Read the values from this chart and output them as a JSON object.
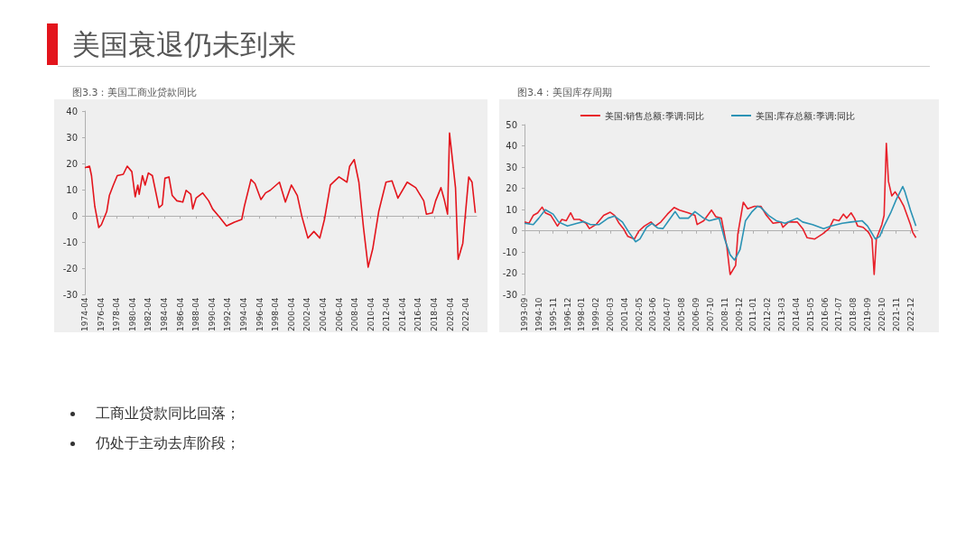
{
  "chart_data": [
    {
      "type": "other",
      "title": "美国衰退仍未到来",
      "annotations": [
        "工商业贷款同比回落；",
        "仍处于主动去库阶段；"
      ]
    },
    {
      "type": "line",
      "title": "图3.3：美国工商业贷款同比",
      "marker": "none",
      "color": "#e3141c",
      "x": [
        "1974-04",
        "1974-11",
        "1975-02",
        "1975-07",
        "1976-01",
        "1976-05",
        "1977-01",
        "1977-05",
        "1977-11",
        "1978-05",
        "1979-02",
        "1979-08",
        "1980-03",
        "1980-08",
        "1980-12",
        "1981-02",
        "1981-07",
        "1981-11",
        "1982-04",
        "1982-10",
        "1983-08",
        "1984-01",
        "1984-05",
        "1984-11",
        "1985-04",
        "1985-11",
        "1986-08",
        "1987-01",
        "1987-08",
        "1987-11",
        "1988-04",
        "1989-02",
        "1989-11",
        "1990-05",
        "1991-03",
        "1992-02",
        "1993-02",
        "1994-01",
        "1994-05",
        "1995-03",
        "1995-09",
        "1996-06",
        "1997-01",
        "1997-08",
        "1998-10",
        "1999-07",
        "2000-04",
        "2001-01",
        "2001-08",
        "2002-05",
        "2003-02",
        "2003-11",
        "2004-06",
        "2005-03",
        "2006-04",
        "2007-04",
        "2007-08",
        "2008-03",
        "2008-10",
        "2009-05",
        "2009-12",
        "2010-07",
        "2011-04",
        "2012-03",
        "2012-12",
        "2013-09",
        "2014-11",
        "2015-12",
        "2016-12",
        "2017-04",
        "2018-01",
        "2018-06",
        "2019-02",
        "2019-07",
        "2019-12",
        "2020-03",
        "2020-12",
        "2021-04",
        "2021-11",
        "2022-08",
        "2023-01",
        "2023-06"
      ],
      "values": [
        18.4,
        19,
        15.4,
        3.7,
        -4.4,
        -3.3,
        1.7,
        7.8,
        11.8,
        15.4,
        15.9,
        19,
        16.9,
        7.3,
        11.8,
        8.3,
        15.4,
        11.8,
        16.4,
        15.4,
        3.2,
        4.3,
        14.4,
        14.9,
        7.8,
        5.8,
        5.3,
        9.8,
        8.3,
        2.7,
        6.8,
        8.8,
        5.8,
        2.7,
        -0.3,
        -3.8,
        -2.3,
        -1.3,
        3.7,
        13.9,
        12.4,
        6.3,
        8.8,
        9.8,
        12.9,
        5.3,
        11.8,
        7.8,
        -0.3,
        -8.4,
        -5.9,
        -8.4,
        -1.3,
        11.8,
        14.9,
        12.9,
        18.9,
        21.5,
        12.9,
        -4.4,
        -19.5,
        -12.5,
        1.7,
        12.9,
        13.4,
        6.8,
        12.9,
        10.8,
        5.8,
        0.7,
        1.2,
        5.8,
        10.8,
        6.3,
        0.7,
        31.6,
        10.8,
        -16.5,
        -10.4,
        14.9,
        12.9,
        1.2
      ],
      "xlim": [
        "1974-04",
        "2023-08"
      ],
      "xticks": [
        "1974-04",
        "1976-04",
        "1978-04",
        "1980-04",
        "1982-04",
        "1984-04",
        "1986-04",
        "1988-04",
        "1990-04",
        "1992-04",
        "1994-04",
        "1996-04",
        "1998-04",
        "2000-04",
        "2002-04",
        "2004-04",
        "2006-04",
        "2008-04",
        "2010-04",
        "2012-04",
        "2014-04",
        "2016-04",
        "2018-04",
        "2020-04",
        "2022-04"
      ],
      "ylim": [
        -30,
        40
      ],
      "yticks": [
        -30,
        -20,
        -10,
        0,
        10,
        20,
        30,
        40
      ]
    },
    {
      "type": "line",
      "title": "图3.4：美国库存周期",
      "marker": "none",
      "legend": "top",
      "series": [
        {
          "name": "美国:销售总额:季调:同比",
          "color": "#e8202a",
          "x": [
            "1993-09",
            "1994-01",
            "1994-05",
            "1994-09",
            "1995-01",
            "1995-04",
            "1995-09",
            "1996-03",
            "1996-07",
            "1996-11",
            "1997-03",
            "1997-06",
            "1997-11",
            "1998-05",
            "1998-08",
            "1999-02",
            "1999-09",
            "2000-03",
            "2000-07",
            "2000-11",
            "2001-03",
            "2001-07",
            "2002-01",
            "2002-05",
            "2002-10",
            "2003-04",
            "2003-08",
            "2004-01",
            "2004-07",
            "2005-01",
            "2005-06",
            "2006-02",
            "2006-08",
            "2006-10",
            "2007-04",
            "2007-11",
            "2008-03",
            "2008-08",
            "2009-01",
            "2009-04",
            "2009-09",
            "2009-11",
            "2010-04",
            "2010-08",
            "2011-02",
            "2011-08",
            "2012-01",
            "2012-07",
            "2013-02",
            "2013-04",
            "2013-09",
            "2014-05",
            "2014-10",
            "2015-02",
            "2015-09",
            "2016-04",
            "2016-10",
            "2017-02",
            "2017-07",
            "2017-11",
            "2018-02",
            "2018-06",
            "2018-09",
            "2018-12",
            "2019-05",
            "2019-10",
            "2020-01",
            "2020-03",
            "2020-05",
            "2020-10",
            "2020-12",
            "2021-02",
            "2021-04",
            "2021-07",
            "2021-10",
            "2022-02",
            "2022-06",
            "2022-12",
            "2023-02",
            "2023-05"
          ],
          "values": [
            4.2,
            3.6,
            7.3,
            8.5,
            11.2,
            8.5,
            7.3,
            2.3,
            5.4,
            4.8,
            8.5,
            5.4,
            5.4,
            3.6,
            1.1,
            3.0,
            7.3,
            8.8,
            7.3,
            3.6,
            1.1,
            -2.6,
            -3.8,
            -0.1,
            2.3,
            4.2,
            2.3,
            4.2,
            7.9,
            11,
            9.8,
            8.5,
            7.3,
            3.0,
            4.8,
            9.8,
            6.7,
            6.0,
            -7.5,
            -20.5,
            -16.2,
            -1.4,
            13.5,
            10.4,
            11.6,
            11.6,
            7.3,
            3.6,
            4.2,
            1.7,
            4.2,
            4.2,
            1.1,
            -3.2,
            -3.8,
            -1.4,
            1.1,
            5.4,
            4.8,
            7.9,
            6.0,
            8.5,
            6.0,
            2.3,
            1.7,
            -0.7,
            -3.8,
            -20.5,
            -3.8,
            3.0,
            7.3,
            41.2,
            23.3,
            16.5,
            18.4,
            15.3,
            11.6,
            3.0,
            -0.7,
            -3.2
          ]
        },
        {
          "name": "美国:库存总额:季调:同比",
          "color": "#2b93b5",
          "x": [
            "1993-09",
            "1994-05",
            "1994-10",
            "1995-04",
            "1995-11",
            "1996-04",
            "1996-12",
            "1997-09",
            "1998-03",
            "1998-09",
            "1999-05",
            "2000-01",
            "2000-07",
            "2001-02",
            "2001-08",
            "2002-02",
            "2002-06",
            "2002-12",
            "2003-05",
            "2003-10",
            "2004-03",
            "2004-08",
            "2005-02",
            "2005-06",
            "2006-02",
            "2006-08",
            "2007-04",
            "2007-09",
            "2008-06",
            "2008-11",
            "2009-04",
            "2009-08",
            "2010-01",
            "2010-06",
            "2010-12",
            "2011-05",
            "2011-08",
            "2012-03",
            "2012-10",
            "2013-06",
            "2014-05",
            "2014-10",
            "2015-07",
            "2016-05",
            "2016-12",
            "2017-10",
            "2018-06",
            "2019-04",
            "2019-09",
            "2020-04",
            "2020-08",
            "2020-12",
            "2021-06",
            "2021-11",
            "2022-05",
            "2022-07",
            "2022-12",
            "2023-05"
          ],
          "values": [
            3.6,
            3.0,
            6.0,
            10,
            7.9,
            4.2,
            2.3,
            3.6,
            4.4,
            3.0,
            3.0,
            6.0,
            7.0,
            4.2,
            -0.7,
            -5.1,
            -3.8,
            1.7,
            3.6,
            1.4,
            1.1,
            4.8,
            9.1,
            6.0,
            6.0,
            9.1,
            6.0,
            4.8,
            6.0,
            -3.8,
            -11.2,
            -13.7,
            -8.8,
            4.8,
            9.1,
            11.6,
            11.0,
            7.3,
            4.8,
            3.6,
            6.0,
            4.2,
            3.0,
            1.1,
            2.3,
            3.6,
            4.2,
            4.8,
            2.3,
            -3.8,
            -2.6,
            2.3,
            8.5,
            14.7,
            20.9,
            18.4,
            9.8,
            2.3
          ]
        }
      ],
      "xlim": [
        "1993-09",
        "2023-07"
      ],
      "xticks": [
        "1993-09",
        "1994-10",
        "1995-11",
        "1996-12",
        "1998-01",
        "1999-02",
        "2000-03",
        "2001-04",
        "2002-05",
        "2003-06",
        "2004-07",
        "2005-08",
        "2006-09",
        "2007-10",
        "2008-11",
        "2009-12",
        "2011-01",
        "2012-02",
        "2013-03",
        "2014-04",
        "2015-05",
        "2016-06",
        "2017-07",
        "2018-08",
        "2019-09",
        "2020-10",
        "2021-11",
        "2022-12"
      ],
      "ylim": [
        -30,
        50
      ],
      "yticks": [
        -30,
        -20,
        -10,
        0,
        10,
        20,
        30,
        40,
        50
      ]
    }
  ]
}
